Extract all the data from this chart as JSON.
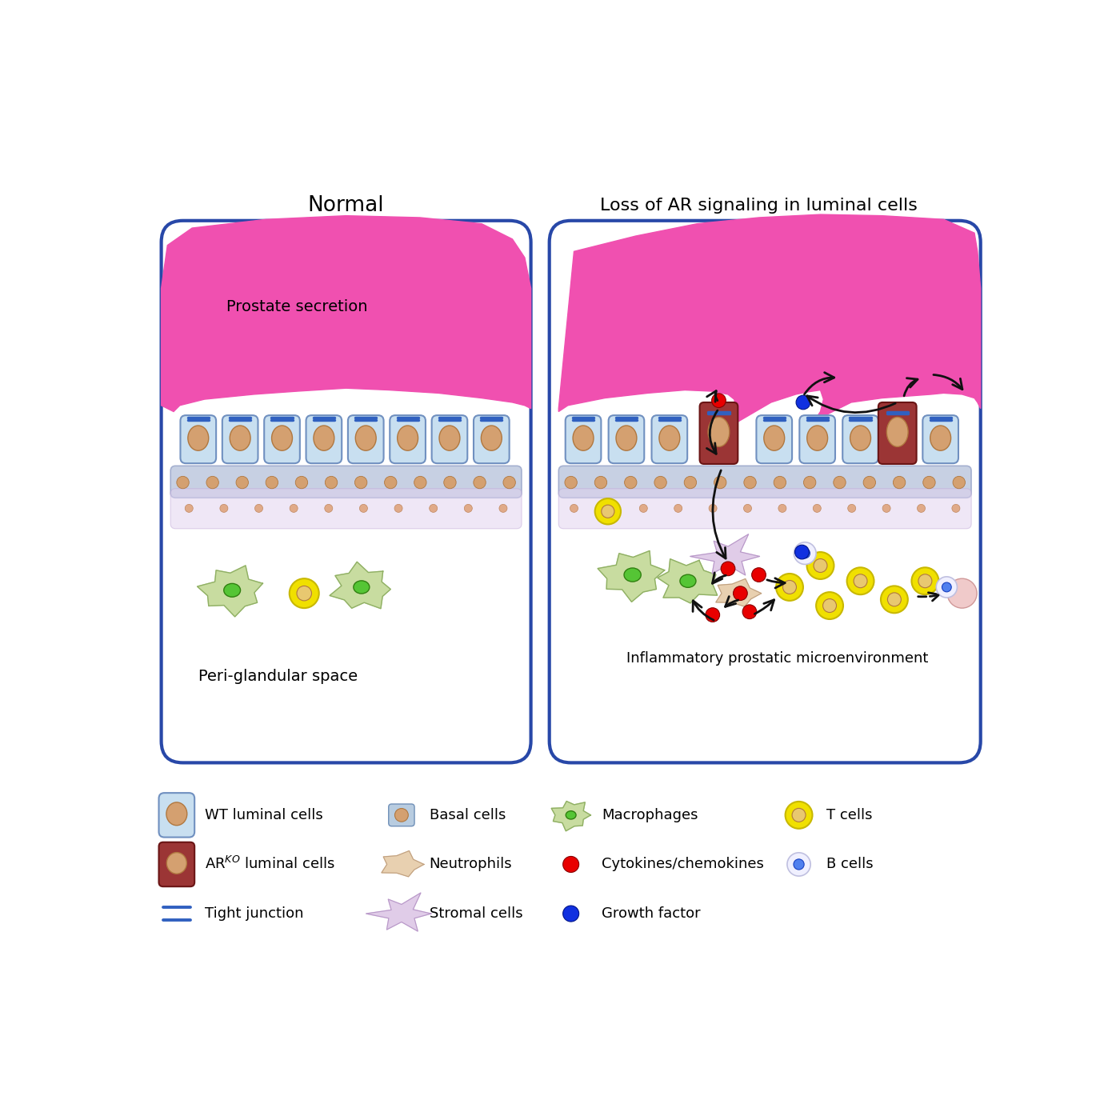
{
  "bg_color": "#ffffff",
  "left_panel_title": "Normal",
  "right_panel_title": "Loss of AR signaling in luminal cells",
  "left_label_bottom": "Peri-glandular space",
  "left_label_secretion": "Prostate secretion",
  "right_label_bottom": "Inflammatory prostatic microenvironment",
  "secretion_color": "#f050b0",
  "wt_cell_color": "#c8dff0",
  "wt_cell_border": "#7090c0",
  "arko_cell_color": "#9b3535",
  "arko_cell_border": "#6a1515",
  "nucleus_color": "#d4a070",
  "nucleus_border": "#b07840",
  "basal_layer_color": "#9aabcc",
  "macrophage_color": "#c8dca0",
  "macrophage_nucleus": "#55c535",
  "t_cell_outer": "#f0e000",
  "t_cell_inner": "#e8c870",
  "b_cell_outer": "#f0f0ff",
  "b_cell_inner": "#5080ee",
  "cytokine_color": "#e80000",
  "growth_factor_color": "#1030e0",
  "tight_junction_color": "#3060c0",
  "arrow_color": "#111111",
  "panel_border_color": "#2848a8",
  "stromal_color": "#e0cce8",
  "stromal_border": "#b898c8",
  "neutrophil_color": "#e8d0b0",
  "neutrophil_border": "#c0a080",
  "subb_color": "#e0d0ee"
}
